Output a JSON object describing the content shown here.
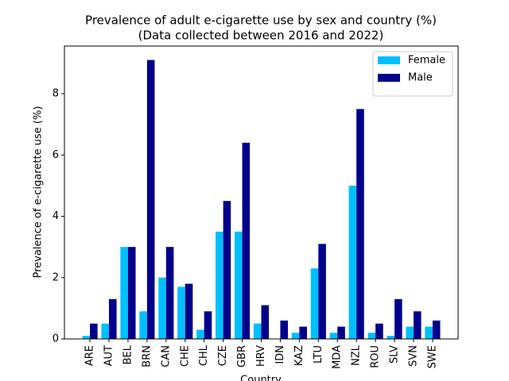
{
  "chart_data": {
    "type": "bar",
    "title": "Prevalence of adult e-cigarette use by sex and country (%)",
    "subtitle": "(Data collected between 2016 and 2022)",
    "x_label": "Country",
    "y_label": "Prevalence of e-cigarette use (%)",
    "categories": [
      "ARE",
      "AUT",
      "BEL",
      "BRN",
      "CAN",
      "CHE",
      "CHL",
      "CZE",
      "GBR",
      "HRV",
      "IDN",
      "KAZ",
      "LTU",
      "MDA",
      "NZL",
      "ROU",
      "SLV",
      "SVN",
      "SWE"
    ],
    "series": [
      {
        "name": "Female",
        "color": "#00bfff",
        "values": [
          0.1,
          0.5,
          3.0,
          0.9,
          2.0,
          1.7,
          0.3,
          3.5,
          3.5,
          0.5,
          0,
          0.2,
          2.3,
          0.2,
          5.0,
          0.2,
          0.1,
          0.4,
          0.4
        ]
      },
      {
        "name": "Male",
        "color": "#00008b",
        "values": [
          0.5,
          1.3,
          3.0,
          9.1,
          3.0,
          1.8,
          0.9,
          4.5,
          6.4,
          1.1,
          0.6,
          0.4,
          3.1,
          0.4,
          7.5,
          0.5,
          1.3,
          0.9,
          0.6
        ]
      }
    ],
    "ylim": [
      0,
      9.555
    ],
    "yticks": [
      0,
      2,
      4,
      6,
      8
    ],
    "legend": "upper right",
    "grid": false
  }
}
